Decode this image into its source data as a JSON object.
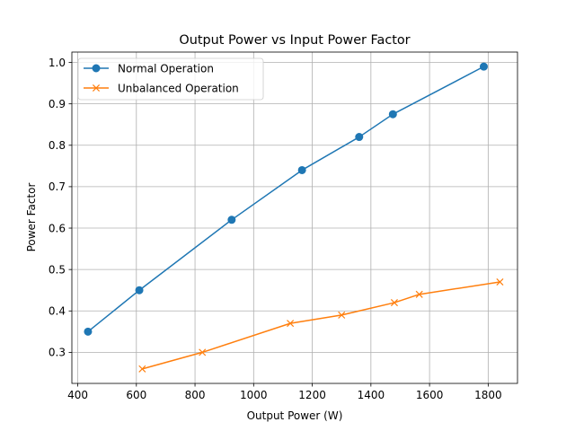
{
  "chart_data": {
    "type": "line",
    "title": "Output Power vs Input Power Factor",
    "xlabel": "Output Power (W)",
    "ylabel": "Power Factor",
    "xlim": [
      380,
      1900
    ],
    "ylim": [
      0.225,
      1.025
    ],
    "xticks": [
      400,
      600,
      800,
      1000,
      1200,
      1400,
      1600,
      1800
    ],
    "xtick_labels": [
      "400",
      "600",
      "800",
      "1000",
      "1200",
      "1400",
      "1600",
      "1800"
    ],
    "yticks": [
      0.3,
      0.4,
      0.5,
      0.6,
      0.7,
      0.8,
      0.9,
      1.0
    ],
    "ytick_labels": [
      "0.3",
      "0.4",
      "0.5",
      "0.6",
      "0.7",
      "0.8",
      "0.9",
      "1.0"
    ],
    "grid": true,
    "legend_position": "top-left",
    "series": [
      {
        "name": "Normal Operation",
        "color": "#1f77b4",
        "marker": "circle",
        "x": [
          435,
          610,
          925,
          1165,
          1360,
          1475,
          1785
        ],
        "y": [
          0.35,
          0.45,
          0.62,
          0.74,
          0.82,
          0.875,
          0.99
        ]
      },
      {
        "name": "Unbalanced Operation",
        "color": "#ff7f0e",
        "marker": "x",
        "x": [
          620,
          825,
          1125,
          1300,
          1480,
          1565,
          1840
        ],
        "y": [
          0.26,
          0.3,
          0.37,
          0.39,
          0.42,
          0.44,
          0.47
        ]
      }
    ]
  }
}
